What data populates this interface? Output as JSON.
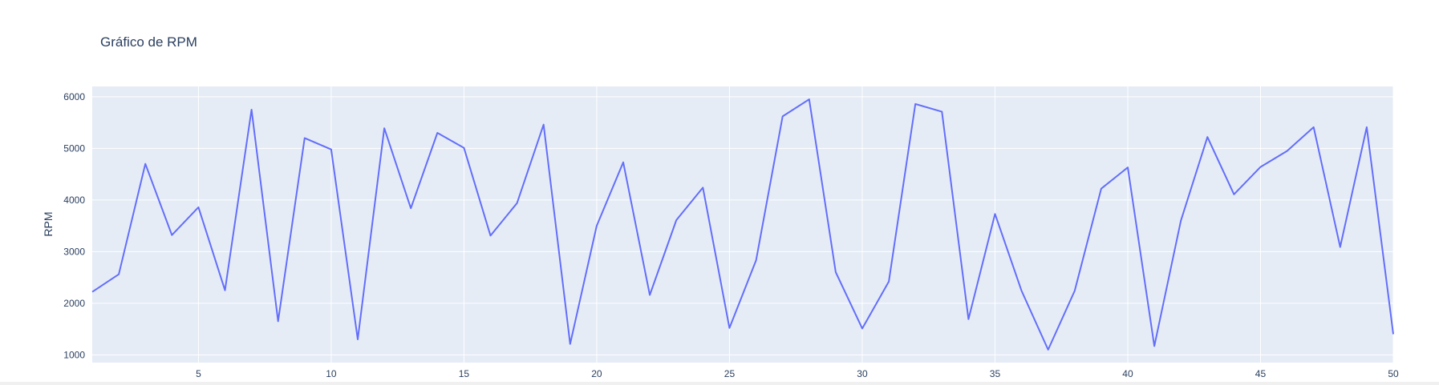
{
  "chart_data": {
    "type": "line",
    "title": "Gráfico de RPM",
    "xlabel": "",
    "ylabel": "RPM",
    "xlim": [
      1,
      50
    ],
    "ylim": [
      850,
      6200
    ],
    "xticks": [
      5,
      10,
      15,
      20,
      25,
      30,
      35,
      40,
      45,
      50
    ],
    "yticks": [
      1000,
      2000,
      3000,
      4000,
      5000,
      6000
    ],
    "grid": true,
    "colors": {
      "plot_bg": "#e5ecf6",
      "grid": "#ffffff",
      "line": "#636efa",
      "text": "#2a3f5f"
    },
    "series": [
      {
        "x": [
          1,
          2,
          3,
          4,
          5,
          6,
          7,
          8,
          9,
          10,
          11,
          12,
          13,
          14,
          15,
          16,
          17,
          18,
          19,
          20,
          21,
          22,
          23,
          24,
          25,
          26,
          27,
          28,
          29,
          30,
          31,
          32,
          33,
          34,
          35,
          36,
          37,
          38,
          39,
          40,
          41,
          42,
          43,
          44,
          45,
          46,
          47,
          48,
          49,
          50
        ],
        "values": [
          2220,
          2560,
          4700,
          3320,
          3860,
          2250,
          5750,
          1650,
          5200,
          4980,
          1300,
          5390,
          3840,
          5300,
          5010,
          3310,
          3940,
          5460,
          1210,
          3500,
          4730,
          2160,
          3610,
          4240,
          1520,
          2830,
          5620,
          5950,
          2600,
          1510,
          2420,
          5860,
          5710,
          1690,
          3730,
          2240,
          1100,
          2240,
          4220,
          4630,
          1170,
          3600,
          5220,
          4110,
          4640,
          4950,
          5410,
          3090,
          5410,
          1400
        ]
      }
    ]
  }
}
